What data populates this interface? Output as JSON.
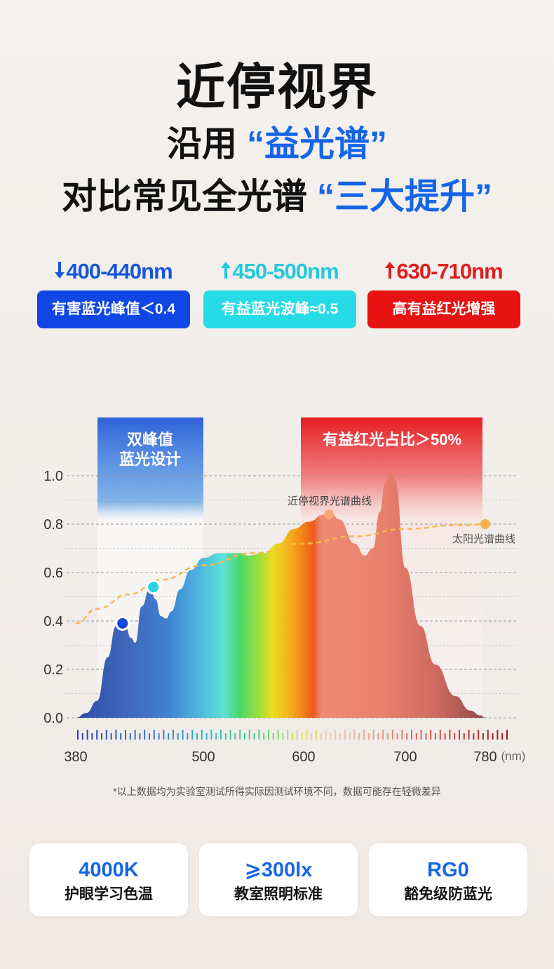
{
  "header": {
    "title": "近停视界",
    "line1_prefix": "沿用",
    "line1_highlight": "“益光谱”",
    "line2_prefix": "对比常见全光谱",
    "line2_highlight": "“三大提升”"
  },
  "features": [
    {
      "arrow": "down",
      "range": "400-440nm",
      "tag": "有害蓝光峰值＜0.4"
    },
    {
      "arrow": "up",
      "range": "450-500nm",
      "tag": "有益蓝光波峰≈0.5"
    },
    {
      "arrow": "up",
      "range": "630-710nm",
      "tag": "高有益红光增强"
    }
  ],
  "chart_data": {
    "type": "area",
    "xlabel": "(nm)",
    "ylim": [
      0,
      1.0
    ],
    "y_ticks": [
      "0.0",
      "0.2",
      "0.4",
      "0.6",
      "0.8",
      "1.0"
    ],
    "x_ticks": [
      "380",
      "500",
      "600",
      "700",
      "780"
    ],
    "grid": true,
    "band_labels": {
      "blue": [
        "双峰值",
        "蓝光设计"
      ],
      "red": "有益红光占比＞50%"
    },
    "series": [
      {
        "name": "近停视界光谱曲线",
        "x": [
          380,
          390,
          400,
          410,
          418,
          425,
          432,
          436,
          442,
          450,
          455,
          460,
          465,
          470,
          478,
          488,
          500,
          515,
          535,
          545,
          560,
          575,
          590,
          605,
          620,
          628,
          635,
          650,
          660,
          668,
          675,
          680,
          685,
          690,
          700,
          715,
          730,
          750,
          765,
          775,
          780
        ],
        "y": [
          0.0,
          0.02,
          0.07,
          0.25,
          0.38,
          0.41,
          0.33,
          0.31,
          0.46,
          0.54,
          0.49,
          0.42,
          0.41,
          0.44,
          0.53,
          0.61,
          0.66,
          0.68,
          0.68,
          0.67,
          0.68,
          0.72,
          0.78,
          0.81,
          0.84,
          0.84,
          0.82,
          0.72,
          0.67,
          0.7,
          0.85,
          0.97,
          1.02,
          0.98,
          0.62,
          0.38,
          0.22,
          0.09,
          0.03,
          0.01,
          0.0
        ]
      },
      {
        "name": "太阳光谱曲线",
        "x": [
          380,
          400,
          430,
          460,
          500,
          550,
          600,
          650,
          700,
          750,
          780
        ],
        "y": [
          0.39,
          0.45,
          0.51,
          0.57,
          0.63,
          0.68,
          0.72,
          0.75,
          0.78,
          0.795,
          0.8
        ]
      }
    ],
    "markers": [
      {
        "x": 424,
        "y": 0.39,
        "color": "#1248e0"
      },
      {
        "x": 453,
        "y": 0.54,
        "color": "#28d3e6"
      },
      {
        "x": 625,
        "y": 0.84,
        "color": "#f7a870"
      },
      {
        "x": 780,
        "y": 0.8,
        "color": "#f6b24b"
      }
    ]
  },
  "note": "*以上数据均为实验室测试所得实际因测试环境不同，数据可能存在轻微差异",
  "cards": [
    {
      "value": "4000K",
      "label": "护眼学习色温"
    },
    {
      "value": "⩾300lx",
      "label": "教室照明标准"
    },
    {
      "value": "RG0",
      "label": "豁免级防蓝光"
    }
  ],
  "colors": {
    "accent_blue": "#1565e6",
    "harmful_blue": "#1046e3",
    "beneficial_cyan": "#27dbe6",
    "beneficial_red": "#e71212"
  }
}
